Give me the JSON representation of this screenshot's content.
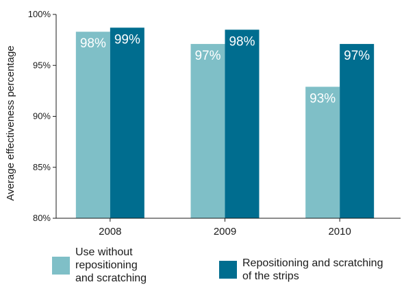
{
  "chart_data": {
    "type": "bar",
    "title": "",
    "xlabel": "",
    "ylabel": "Average effectiveness percentage",
    "categories": [
      "2008",
      "2009",
      "2010"
    ],
    "ylim": [
      80,
      100
    ],
    "yticks": [
      80,
      85,
      90,
      95,
      100
    ],
    "ytick_labels": [
      "80%",
      "85%",
      "90%",
      "95%",
      "100%"
    ],
    "grid": false,
    "legend_position": "bottom",
    "series": [
      {
        "name": "Use without repositioning and scratching",
        "legend_lines": [
          "Use without",
          "repositioning",
          "and scratching"
        ],
        "color": "#7fbfc7",
        "values": [
          98.3,
          97.1,
          92.9
        ],
        "labels": [
          "98%",
          "97%",
          "93%"
        ]
      },
      {
        "name": "Repositioning and scratching of the strips",
        "legend_lines": [
          "Repositioning and scratching",
          "of the strips"
        ],
        "color": "#006d8f",
        "values": [
          98.7,
          98.5,
          97.1
        ],
        "labels": [
          "99%",
          "98%",
          "97%"
        ]
      }
    ]
  }
}
